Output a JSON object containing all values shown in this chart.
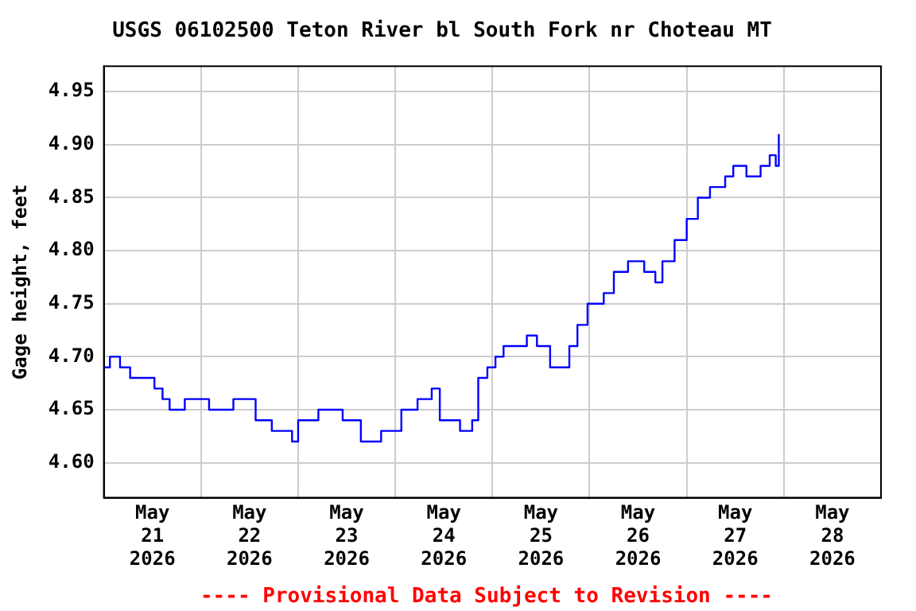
{
  "chart_data": {
    "type": "step",
    "title": "USGS 06102500 Teton River bl South Fork nr Choteau MT",
    "ylabel": "Gage height, feet",
    "annotations": [
      "---- Provisional Data Subject to Revision ----"
    ],
    "x": [
      "2026-05-21T00:00",
      "2026-05-21T01:30",
      "2026-05-21T04:00",
      "2026-05-21T06:30",
      "2026-05-21T10:30",
      "2026-05-21T12:30",
      "2026-05-21T14:30",
      "2026-05-21T16:15",
      "2026-05-21T20:00",
      "2026-05-22T02:00",
      "2026-05-22T08:00",
      "2026-05-22T12:30",
      "2026-05-22T13:30",
      "2026-05-22T17:30",
      "2026-05-22T22:30",
      "2026-05-23T00:00",
      "2026-05-23T05:00",
      "2026-05-23T11:00",
      "2026-05-23T14:00",
      "2026-05-23T15:30",
      "2026-05-23T19:30",
      "2026-05-23T20:30",
      "2026-05-23T23:00",
      "2026-05-24T01:30",
      "2026-05-24T05:30",
      "2026-05-24T08:00",
      "2026-05-24T09:00",
      "2026-05-24T11:00",
      "2026-05-24T16:00",
      "2026-05-24T19:00",
      "2026-05-24T20:30",
      "2026-05-24T22:45",
      "2026-05-25T00:45",
      "2026-05-25T02:45",
      "2026-05-25T05:30",
      "2026-05-25T08:30",
      "2026-05-25T11:00",
      "2026-05-25T14:15",
      "2026-05-25T18:15",
      "2026-05-25T19:00",
      "2026-05-25T21:00",
      "2026-05-25T23:30",
      "2026-05-26T03:30",
      "2026-05-26T06:00",
      "2026-05-26T09:30",
      "2026-05-26T13:30",
      "2026-05-26T16:15",
      "2026-05-26T18:00",
      "2026-05-26T21:00",
      "2026-05-27T00:00",
      "2026-05-27T02:45",
      "2026-05-27T05:45",
      "2026-05-27T09:30",
      "2026-05-27T11:30",
      "2026-05-27T14:45",
      "2026-05-27T18:15",
      "2026-05-27T20:30",
      "2026-05-27T22:00",
      "2026-05-27T22:45"
    ],
    "series": [
      {
        "color": "#0000ff",
        "values": [
          4.69,
          4.7,
          4.69,
          4.68,
          4.68,
          4.67,
          4.66,
          4.65,
          4.66,
          4.65,
          4.66,
          4.66,
          4.64,
          4.63,
          4.62,
          4.64,
          4.65,
          4.64,
          4.64,
          4.62,
          4.62,
          4.63,
          4.63,
          4.65,
          4.66,
          4.66,
          4.67,
          4.64,
          4.63,
          4.64,
          4.68,
          4.69,
          4.7,
          4.71,
          4.71,
          4.72,
          4.71,
          4.69,
          4.69,
          4.71,
          4.73,
          4.75,
          4.76,
          4.78,
          4.79,
          4.78,
          4.77,
          4.79,
          4.81,
          4.83,
          4.85,
          4.86,
          4.87,
          4.88,
          4.87,
          4.88,
          4.89,
          4.88,
          4.91
        ]
      }
    ],
    "xlim": [
      "2026-05-21T00:00",
      "2026-05-29T00:00"
    ],
    "xticks": [
      {
        "value": "2026-05-21T12:00",
        "label": "May\n21\n2026"
      },
      {
        "value": "2026-05-22T00:00",
        "label": null
      },
      {
        "value": "2026-05-22T12:00",
        "label": "May\n22\n2026"
      },
      {
        "value": "2026-05-23T00:00",
        "label": null
      },
      {
        "value": "2026-05-23T12:00",
        "label": "May\n23\n2026"
      },
      {
        "value": "2026-05-24T00:00",
        "label": null
      },
      {
        "value": "2026-05-24T12:00",
        "label": "May\n24\n2026"
      },
      {
        "value": "2026-05-25T00:00",
        "label": null
      },
      {
        "value": "2026-05-25T12:00",
        "label": "May\n25\n2026"
      },
      {
        "value": "2026-05-26T00:00",
        "label": null
      },
      {
        "value": "2026-05-26T12:00",
        "label": "May\n26\n2026"
      },
      {
        "value": "2026-05-27T00:00",
        "label": null
      },
      {
        "value": "2026-05-27T12:00",
        "label": "May\n27\n2026"
      },
      {
        "value": "2026-05-28T00:00",
        "label": null
      },
      {
        "value": "2026-05-28T12:00",
        "label": "May\n28\n2026"
      }
    ],
    "ylim": [
      4.567,
      4.974
    ],
    "yticks": [
      {
        "value": 4.6,
        "label": "4.60"
      },
      {
        "value": 4.65,
        "label": "4.65"
      },
      {
        "value": 4.7,
        "label": "4.70"
      },
      {
        "value": 4.75,
        "label": "4.75"
      },
      {
        "value": 4.8,
        "label": "4.80"
      },
      {
        "value": 4.85,
        "label": "4.85"
      },
      {
        "value": 4.9,
        "label": "4.90"
      },
      {
        "value": 4.95,
        "label": "4.95"
      }
    ],
    "grid": true,
    "legend": false,
    "marker": "none",
    "line_style": "solid"
  }
}
